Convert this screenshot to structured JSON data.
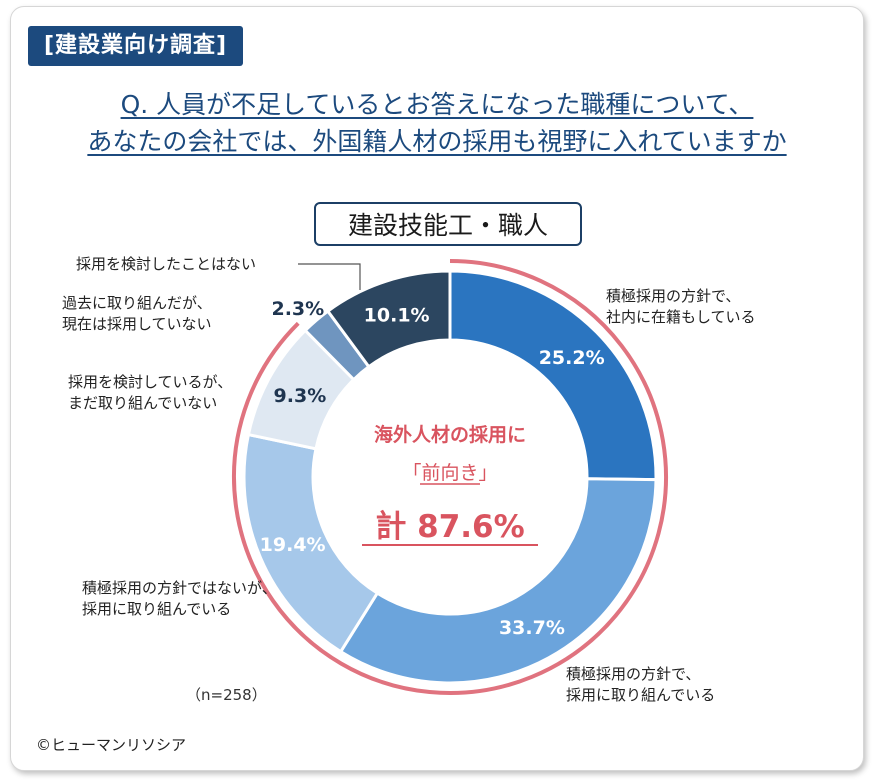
{
  "tag": "[建設業向け調査]",
  "question": [
    "Q. 人員が不足しているとお答えになった職種について、",
    "あなたの会社では、外国籍人材の採用も視野に入れていますか"
  ],
  "subtitle": "建設技能工・職人",
  "center": {
    "line1": "海外人材の採用に",
    "line2_prefix": "「",
    "line2_main": "前向き",
    "line2_suffix": "」",
    "line3": "計 87.6%"
  },
  "sample": "（n=258）",
  "credit": "©ヒューマンリソシア",
  "colors": {
    "accent_red": "#e0737f",
    "center_text": "#d9545f",
    "title_blue": "#1c4a7e"
  },
  "chart_data": {
    "type": "pie",
    "variant": "donut",
    "categories": [
      "積極採用の方針で、社内に在籍もしている",
      "積極採用の方針で、採用に取り組んでいる",
      "積極採用の方針ではないが、採用に取り組んでいる",
      "採用を検討しているが、まだ取り組んでいない",
      "過去に取り組んだが、現在は採用していない",
      "採用を検討したことはない"
    ],
    "values": [
      25.2,
      33.7,
      19.4,
      9.3,
      2.3,
      10.1
    ],
    "value_labels": [
      "25.2%",
      "33.7%",
      "19.4%",
      "9.3%",
      "2.3%",
      "10.1%"
    ],
    "colors": [
      "#2b75c0",
      "#6ba4dc",
      "#a6c8ea",
      "#dfe8f2",
      "#6f95bf",
      "#2c4660"
    ],
    "label_colors": [
      "#ffffff",
      "#ffffff",
      "#ffffff",
      "#1f3550",
      "#1f3550",
      "#ffffff"
    ],
    "highlight_arc_total": "87.6%"
  }
}
